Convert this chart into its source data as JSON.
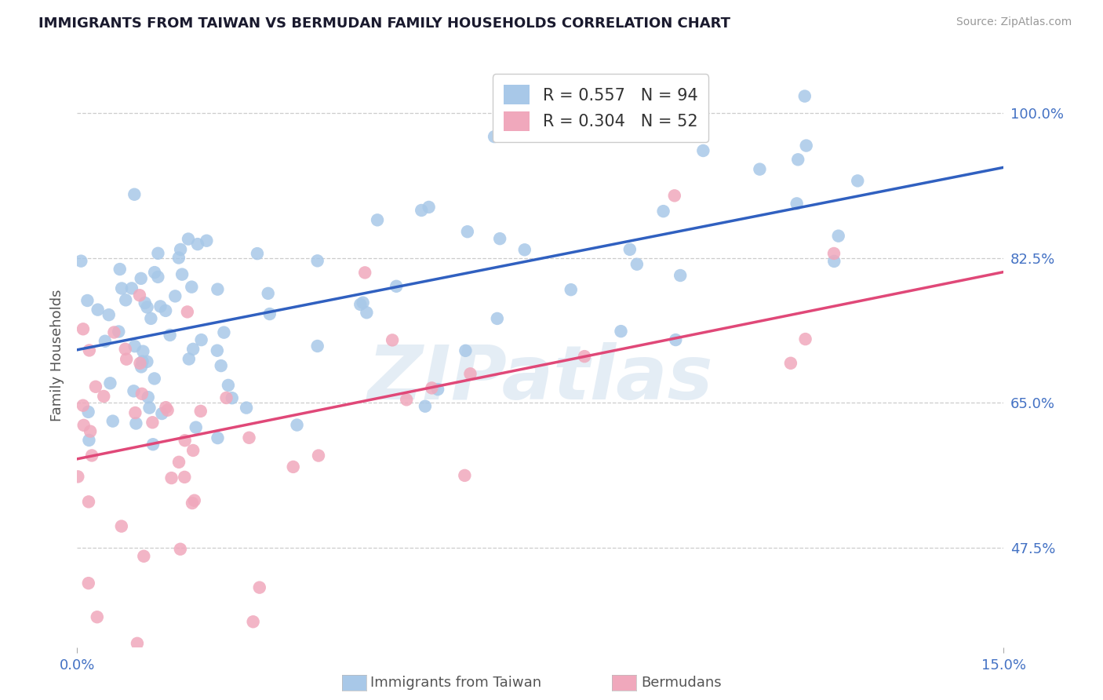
{
  "title": "IMMIGRANTS FROM TAIWAN VS BERMUDAN FAMILY HOUSEHOLDS CORRELATION CHART",
  "source": "Source: ZipAtlas.com",
  "ylabel": "Family Households",
  "ytick_labels": [
    "47.5%",
    "65.0%",
    "82.5%",
    "100.0%"
  ],
  "ytick_vals": [
    0.475,
    0.65,
    0.825,
    1.0
  ],
  "xtick_labels": [
    "0.0%",
    "15.0%"
  ],
  "xtick_vals": [
    0.0,
    0.15
  ],
  "xmin": 0.0,
  "xmax": 0.15,
  "ymin": 0.355,
  "ymax": 1.06,
  "r1": 0.557,
  "n1": 94,
  "r2": 0.304,
  "n2": 52,
  "color_taiwan": "#a8c8e8",
  "color_bermuda": "#f0a8bc",
  "line_color_taiwan": "#3060c0",
  "line_color_bermuda": "#e04878",
  "watermark": "ZIPatlas",
  "bottom_label1": "Immigrants from Taiwan",
  "bottom_label2": "Bermudans",
  "legend_label1": "R = 0.557   N = 94",
  "legend_label2": "R = 0.304   N = 52",
  "title_fontsize": 13,
  "source_fontsize": 10,
  "tick_fontsize": 13,
  "legend_fontsize": 15
}
